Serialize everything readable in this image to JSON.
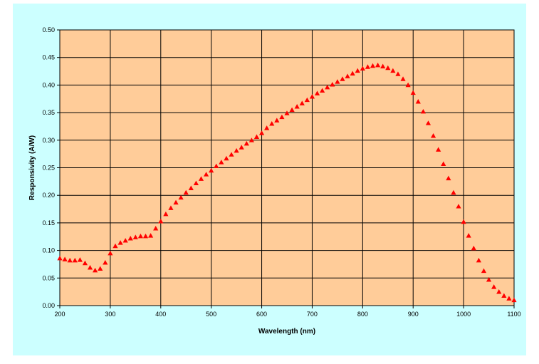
{
  "colors": {
    "chart_background": "#ccffff",
    "plot_background": "#ffcc99",
    "gridline": "#000000",
    "marker": "#ff0000"
  },
  "chart_data": {
    "type": "scatter",
    "marker": "triangle",
    "title": "",
    "xlabel": "Wavelength (nm)",
    "ylabel": "Responsivity (A/W)",
    "xlim": [
      200,
      1100
    ],
    "ylim": [
      0.0,
      0.5
    ],
    "xticks": [
      200,
      300,
      400,
      500,
      600,
      700,
      800,
      900,
      1000,
      1100
    ],
    "yticks": [
      0.0,
      0.05,
      0.1,
      0.15,
      0.2,
      0.25,
      0.3,
      0.35,
      0.4,
      0.45,
      0.5
    ],
    "xtick_labels": [
      "200",
      "300",
      "400",
      "500",
      "600",
      "700",
      "800",
      "900",
      "1000",
      "1100"
    ],
    "ytick_labels": [
      "0.00",
      "0.05",
      "0.10",
      "0.15",
      "0.20",
      "0.25",
      "0.30",
      "0.35",
      "0.40",
      "0.45",
      "0.50"
    ],
    "grid": true,
    "legend": "none",
    "series": [
      {
        "x": [
          200,
          210,
          220,
          230,
          240,
          250,
          260,
          270,
          280,
          290,
          300,
          310,
          320,
          330,
          340,
          350,
          360,
          370,
          380,
          390,
          400,
          410,
          420,
          430,
          440,
          450,
          460,
          470,
          480,
          490,
          500,
          510,
          520,
          530,
          540,
          550,
          560,
          570,
          580,
          590,
          600,
          610,
          620,
          630,
          640,
          650,
          660,
          670,
          680,
          690,
          700,
          710,
          720,
          730,
          740,
          750,
          760,
          770,
          780,
          790,
          800,
          810,
          820,
          830,
          840,
          850,
          860,
          870,
          880,
          890,
          900,
          910,
          920,
          930,
          940,
          950,
          960,
          970,
          980,
          990,
          1000,
          1010,
          1020,
          1030,
          1040,
          1050,
          1060,
          1070,
          1080,
          1090,
          1100
        ],
        "y": [
          0.086,
          0.084,
          0.082,
          0.082,
          0.083,
          0.077,
          0.069,
          0.064,
          0.067,
          0.078,
          0.095,
          0.108,
          0.114,
          0.118,
          0.122,
          0.124,
          0.126,
          0.126,
          0.127,
          0.14,
          0.153,
          0.166,
          0.177,
          0.187,
          0.196,
          0.205,
          0.213,
          0.222,
          0.23,
          0.238,
          0.245,
          0.253,
          0.26,
          0.267,
          0.274,
          0.281,
          0.287,
          0.294,
          0.3,
          0.306,
          0.313,
          0.322,
          0.33,
          0.336,
          0.342,
          0.349,
          0.355,
          0.361,
          0.367,
          0.373,
          0.379,
          0.385,
          0.39,
          0.396,
          0.401,
          0.406,
          0.411,
          0.416,
          0.421,
          0.426,
          0.43,
          0.433,
          0.435,
          0.436,
          0.434,
          0.431,
          0.426,
          0.42,
          0.411,
          0.4,
          0.386,
          0.37,
          0.352,
          0.331,
          0.308,
          0.283,
          0.257,
          0.231,
          0.205,
          0.18,
          0.152,
          0.127,
          0.104,
          0.082,
          0.063,
          0.047,
          0.034,
          0.025,
          0.018,
          0.013,
          0.01
        ]
      }
    ]
  }
}
